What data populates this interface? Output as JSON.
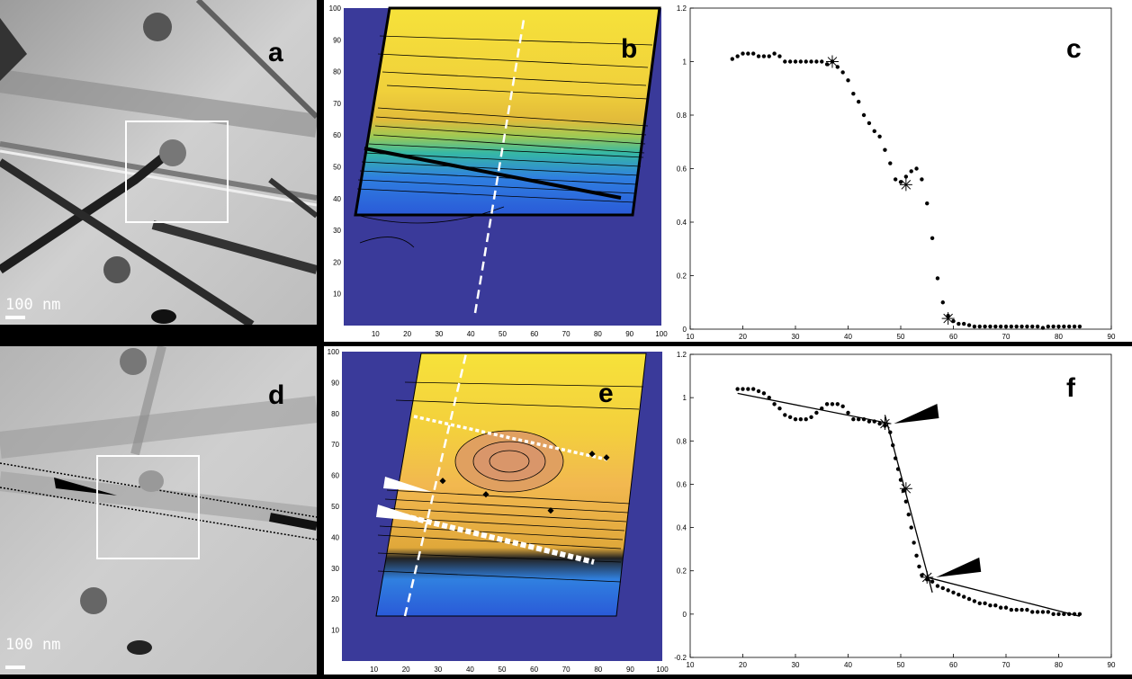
{
  "panels": {
    "a": {
      "letter": "a",
      "scale": "100 nm"
    },
    "b": {
      "letter": "b"
    },
    "c": {
      "letter": "c"
    },
    "d": {
      "letter": "d",
      "scale": "100 nm"
    },
    "e": {
      "letter": "e"
    },
    "f": {
      "letter": "f"
    }
  },
  "colors": {
    "contour_low": "#3a3a9a",
    "contour_high": "#f3d93a",
    "mid_cyan": "#34b7a8"
  },
  "chart_data": [
    {
      "id": "b",
      "type": "heatmap",
      "title": "",
      "xlim": [
        0,
        100
      ],
      "ylim": [
        0,
        100
      ],
      "x_ticks": [
        10,
        20,
        30,
        40,
        50,
        60,
        70,
        80,
        90,
        100
      ],
      "y_ticks": [
        10,
        20,
        30,
        40,
        50,
        60,
        70,
        80,
        90,
        100
      ]
    },
    {
      "id": "c",
      "type": "scatter",
      "title": "",
      "xlabel": "",
      "ylabel": "",
      "xlim": [
        10,
        90
      ],
      "ylim": [
        0,
        1.2
      ],
      "x_ticks": [
        10,
        20,
        30,
        40,
        50,
        60,
        70,
        80,
        90
      ],
      "y_ticks": [
        0,
        0.2,
        0.4,
        0.6,
        0.8,
        1,
        1.2
      ],
      "x": [
        18,
        19,
        20,
        21,
        22,
        23,
        24,
        25,
        26,
        27,
        28,
        29,
        30,
        31,
        32,
        33,
        34,
        35,
        36,
        37,
        38,
        39,
        40,
        41,
        42,
        43,
        44,
        45,
        46,
        47,
        48,
        49,
        50,
        51,
        52,
        53,
        54,
        55,
        56,
        57,
        58,
        59,
        60,
        61,
        62,
        63,
        64,
        65,
        66,
        67,
        68,
        69,
        70,
        71,
        72,
        73,
        74,
        75,
        76,
        77,
        78,
        79,
        80,
        81,
        82,
        83,
        84
      ],
      "y": [
        1.01,
        1.02,
        1.03,
        1.03,
        1.03,
        1.02,
        1.02,
        1.02,
        1.03,
        1.02,
        1.0,
        1.0,
        1.0,
        1.0,
        1.0,
        1.0,
        1.0,
        1.0,
        0.99,
        1.0,
        0.98,
        0.96,
        0.93,
        0.88,
        0.85,
        0.8,
        0.77,
        0.74,
        0.72,
        0.67,
        0.62,
        0.56,
        0.55,
        0.57,
        0.59,
        0.6,
        0.56,
        0.47,
        0.34,
        0.19,
        0.1,
        0.05,
        0.03,
        0.02,
        0.02,
        0.015,
        0.01,
        0.01,
        0.01,
        0.01,
        0.01,
        0.01,
        0.01,
        0.01,
        0.01,
        0.01,
        0.01,
        0.01,
        0.01,
        0.005,
        0.01,
        0.01,
        0.01,
        0.01,
        0.01,
        0.01,
        0.01
      ],
      "star_points": [
        [
          37,
          1.0
        ],
        [
          51,
          0.54
        ],
        [
          59,
          0.04
        ]
      ]
    },
    {
      "id": "e",
      "type": "heatmap",
      "title": "",
      "xlim": [
        0,
        100
      ],
      "ylim": [
        0,
        100
      ],
      "x_ticks": [
        10,
        20,
        30,
        40,
        50,
        60,
        70,
        80,
        90,
        100
      ],
      "y_ticks": [
        10,
        20,
        30,
        40,
        50,
        60,
        70,
        80,
        90,
        100
      ]
    },
    {
      "id": "f",
      "type": "scatter",
      "title": "",
      "xlabel": "",
      "ylabel": "",
      "xlim": [
        10,
        90
      ],
      "ylim": [
        -0.2,
        1.2
      ],
      "x_ticks": [
        10,
        20,
        30,
        40,
        50,
        60,
        70,
        80,
        90
      ],
      "y_ticks": [
        -0.2,
        0,
        0.2,
        0.4,
        0.6,
        0.8,
        1,
        1.2
      ],
      "x": [
        19,
        20,
        21,
        22,
        23,
        24,
        25,
        26,
        27,
        28,
        29,
        30,
        31,
        32,
        33,
        34,
        35,
        36,
        37,
        38,
        39,
        40,
        41,
        42,
        43,
        44,
        45,
        46,
        47,
        48,
        48.5,
        49,
        49.5,
        50,
        50.5,
        51,
        51.5,
        52,
        52.5,
        53,
        53.5,
        54,
        55,
        56,
        57,
        58,
        59,
        60,
        61,
        62,
        63,
        64,
        65,
        66,
        67,
        68,
        69,
        70,
        71,
        72,
        73,
        74,
        75,
        76,
        77,
        78,
        79,
        80,
        81,
        82,
        83,
        84
      ],
      "y": [
        1.04,
        1.04,
        1.04,
        1.04,
        1.03,
        1.02,
        1.0,
        0.97,
        0.95,
        0.92,
        0.91,
        0.9,
        0.9,
        0.9,
        0.91,
        0.93,
        0.95,
        0.97,
        0.97,
        0.97,
        0.96,
        0.93,
        0.9,
        0.9,
        0.9,
        0.89,
        0.89,
        0.88,
        0.87,
        0.84,
        0.78,
        0.72,
        0.67,
        0.62,
        0.57,
        0.52,
        0.46,
        0.4,
        0.33,
        0.27,
        0.22,
        0.18,
        0.16,
        0.15,
        0.13,
        0.12,
        0.11,
        0.1,
        0.09,
        0.08,
        0.07,
        0.06,
        0.05,
        0.05,
        0.04,
        0.04,
        0.03,
        0.03,
        0.02,
        0.02,
        0.02,
        0.02,
        0.01,
        0.01,
        0.01,
        0.01,
        0.0,
        0.0,
        0.0,
        0.0,
        0.0,
        0.0
      ],
      "star_points": [
        [
          47,
          0.88
        ],
        [
          51,
          0.58
        ],
        [
          55,
          0.17
        ]
      ],
      "fit_lines": [
        {
          "x": [
            19,
            48
          ],
          "y": [
            1.02,
            0.88
          ]
        },
        {
          "x": [
            47,
            56
          ],
          "y": [
            0.92,
            0.1
          ]
        },
        {
          "x": [
            55,
            84
          ],
          "y": [
            0.17,
            -0.01
          ]
        }
      ]
    }
  ]
}
